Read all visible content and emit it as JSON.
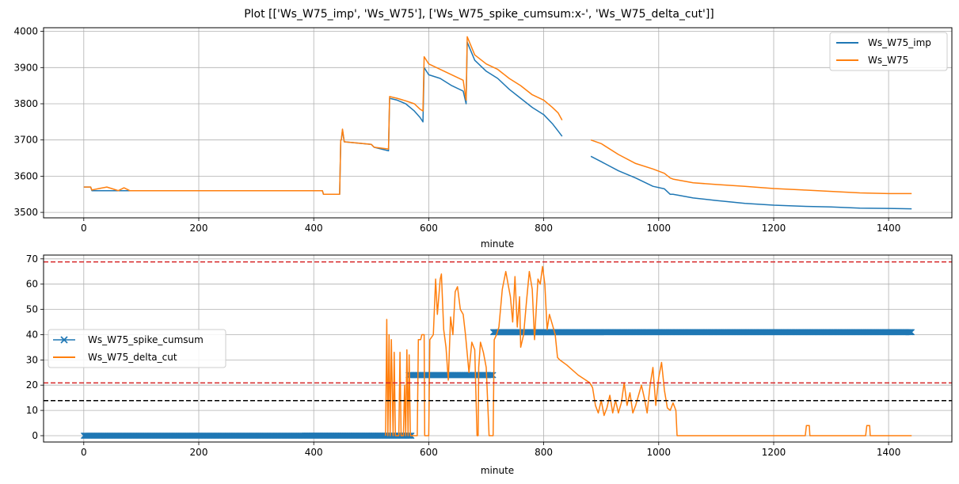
{
  "figure": {
    "title": "Plot [['Ws_W75_imp', 'Ws_W75'], ['Ws_W75_spike_cumsum:x-', 'Ws_W75_delta_cut']]"
  },
  "chart_data": [
    {
      "type": "line",
      "xlabel": "minute",
      "ylabel": "",
      "xlim": [
        -70,
        1510
      ],
      "ylim": [
        3485,
        4010
      ],
      "xticks": [
        0,
        200,
        400,
        600,
        800,
        1000,
        1200,
        1400
      ],
      "yticks": [
        3500,
        3600,
        3700,
        3800,
        3900,
        4000
      ],
      "grid": true,
      "legend_position": "top-right",
      "series": [
        {
          "name": "Ws_W75_imp",
          "color": "#1f77b4",
          "points": [
            [
              0,
              3570
            ],
            [
              12,
              3570
            ],
            [
              14,
              3560
            ],
            [
              50,
              3560
            ],
            [
              60,
              3560
            ],
            [
              80,
              3560
            ],
            [
              415,
              3560
            ],
            [
              417,
              3550
            ],
            [
              445,
              3550
            ],
            [
              447,
              3700
            ],
            [
              448,
              3700
            ],
            [
              450,
              3728
            ],
            [
              453,
              3695
            ],
            [
              500,
              3688
            ],
            [
              505,
              3680
            ],
            [
              530,
              3670
            ],
            [
              532,
              3815
            ],
            [
              545,
              3810
            ],
            [
              560,
              3800
            ],
            [
              575,
              3780
            ],
            [
              585,
              3762
            ],
            [
              590,
              3750
            ],
            [
              592,
              3900
            ],
            [
              600,
              3880
            ],
            [
              620,
              3870
            ],
            [
              640,
              3850
            ],
            [
              660,
              3835
            ],
            [
              665,
              3800
            ],
            [
              667,
              3970
            ],
            [
              680,
              3920
            ],
            [
              700,
              3890
            ],
            [
              720,
              3870
            ],
            [
              740,
              3840
            ],
            [
              760,
              3815
            ],
            [
              780,
              3790
            ],
            [
              800,
              3770
            ],
            [
              815,
              3745
            ],
            [
              825,
              3725
            ],
            [
              832,
              3710
            ],
            [
              882,
              3655
            ],
            [
              900,
              3640
            ],
            [
              930,
              3615
            ],
            [
              960,
              3595
            ],
            [
              990,
              3572
            ],
            [
              1010,
              3565
            ],
            [
              1020,
              3550
            ],
            [
              1025,
              3550
            ],
            [
              1060,
              3540
            ],
            [
              1100,
              3533
            ],
            [
              1150,
              3525
            ],
            [
              1200,
              3520
            ],
            [
              1250,
              3517
            ],
            [
              1300,
              3515
            ],
            [
              1350,
              3512
            ],
            [
              1400,
              3511
            ],
            [
              1440,
              3510
            ]
          ],
          "gaps_after_x": [
            832
          ]
        },
        {
          "name": "Ws_W75",
          "color": "#ff7f0e",
          "points": [
            [
              0,
              3570
            ],
            [
              12,
              3570
            ],
            [
              14,
              3562
            ],
            [
              40,
              3570
            ],
            [
              50,
              3565
            ],
            [
              60,
              3560
            ],
            [
              70,
              3568
            ],
            [
              80,
              3560
            ],
            [
              415,
              3560
            ],
            [
              417,
              3550
            ],
            [
              445,
              3550
            ],
            [
              447,
              3700
            ],
            [
              448,
              3700
            ],
            [
              450,
              3730
            ],
            [
              453,
              3695
            ],
            [
              500,
              3688
            ],
            [
              505,
              3680
            ],
            [
              530,
              3675
            ],
            [
              532,
              3820
            ],
            [
              545,
              3815
            ],
            [
              560,
              3808
            ],
            [
              575,
              3800
            ],
            [
              585,
              3785
            ],
            [
              590,
              3780
            ],
            [
              592,
              3930
            ],
            [
              600,
              3910
            ],
            [
              620,
              3895
            ],
            [
              640,
              3880
            ],
            [
              660,
              3865
            ],
            [
              665,
              3810
            ],
            [
              667,
              3985
            ],
            [
              680,
              3935
            ],
            [
              700,
              3910
            ],
            [
              720,
              3895
            ],
            [
              740,
              3870
            ],
            [
              760,
              3850
            ],
            [
              780,
              3825
            ],
            [
              800,
              3810
            ],
            [
              815,
              3790
            ],
            [
              825,
              3775
            ],
            [
              832,
              3755
            ],
            [
              882,
              3700
            ],
            [
              900,
              3690
            ],
            [
              930,
              3660
            ],
            [
              960,
              3635
            ],
            [
              990,
              3620
            ],
            [
              1010,
              3608
            ],
            [
              1020,
              3595
            ],
            [
              1025,
              3592
            ],
            [
              1060,
              3582
            ],
            [
              1100,
              3577
            ],
            [
              1150,
              3572
            ],
            [
              1200,
              3566
            ],
            [
              1250,
              3562
            ],
            [
              1300,
              3558
            ],
            [
              1350,
              3554
            ],
            [
              1400,
              3552
            ],
            [
              1440,
              3552
            ]
          ],
          "gaps_after_x": [
            832
          ]
        }
      ]
    },
    {
      "type": "line",
      "xlabel": "minute",
      "ylabel": "",
      "xlim": [
        -70,
        1510
      ],
      "ylim": [
        -2.5,
        71.5
      ],
      "xticks": [
        0,
        200,
        400,
        600,
        800,
        1000,
        1200,
        1400
      ],
      "yticks": [
        0,
        10,
        20,
        30,
        40,
        50,
        60,
        70
      ],
      "grid": true,
      "legend_position": "center-left",
      "hlines": [
        {
          "y": 68.8,
          "color": "#d62728",
          "style": "dashed"
        },
        {
          "y": 20.9,
          "color": "#d62728",
          "style": "dashed"
        },
        {
          "y": 13.9,
          "color": "#000000",
          "style": "dashed"
        }
      ],
      "series": [
        {
          "name": "Ws_W75_spike_cumsum",
          "color": "#1f77b4",
          "marker": "x",
          "segments": [
            {
              "x_start": 0,
              "x_end": 570,
              "y": 0
            },
            {
              "x_start": 565,
              "x_end": 712,
              "y": 24
            },
            {
              "x_start": 712,
              "x_end": 1440,
              "y": 41
            }
          ]
        },
        {
          "name": "Ws_W75_delta_cut",
          "color": "#ff7f0e",
          "points": [
            [
              525,
              0
            ],
            [
              527,
              46
            ],
            [
              529,
              0
            ],
            [
              531,
              40
            ],
            [
              533,
              0
            ],
            [
              535,
              38
            ],
            [
              538,
              0
            ],
            [
              540,
              33
            ],
            [
              542,
              0
            ],
            [
              548,
              0
            ],
            [
              550,
              33
            ],
            [
              552,
              0
            ],
            [
              556,
              0
            ],
            [
              558,
              20
            ],
            [
              560,
              0
            ],
            [
              562,
              34
            ],
            [
              564,
              0
            ],
            [
              566,
              32
            ],
            [
              568,
              0
            ],
            [
              570,
              0
            ],
            [
              580,
              0
            ],
            [
              582,
              38
            ],
            [
              586,
              38
            ],
            [
              588,
              40
            ],
            [
              592,
              40
            ],
            [
              593,
              0
            ],
            [
              600,
              0
            ],
            [
              602,
              38
            ],
            [
              608,
              40
            ],
            [
              612,
              62
            ],
            [
              615,
              48
            ],
            [
              620,
              62
            ],
            [
              622,
              64
            ],
            [
              626,
              42
            ],
            [
              630,
              35
            ],
            [
              634,
              22
            ],
            [
              638,
              47
            ],
            [
              642,
              40
            ],
            [
              646,
              57
            ],
            [
              650,
              59
            ],
            [
              655,
              50
            ],
            [
              660,
              48
            ],
            [
              664,
              40
            ],
            [
              670,
              25
            ],
            [
              675,
              37
            ],
            [
              680,
              34
            ],
            [
              684,
              0
            ],
            [
              686,
              0
            ],
            [
              687,
              27
            ],
            [
              690,
              37
            ],
            [
              695,
              33
            ],
            [
              700,
              27
            ],
            [
              705,
              0
            ],
            [
              712,
              0
            ],
            [
              714,
              38
            ],
            [
              718,
              40
            ],
            [
              722,
              43
            ],
            [
              728,
              58
            ],
            [
              734,
              65
            ],
            [
              738,
              60
            ],
            [
              742,
              55
            ],
            [
              746,
              45
            ],
            [
              750,
              63
            ],
            [
              754,
              43
            ],
            [
              758,
              55
            ],
            [
              760,
              35
            ],
            [
              765,
              40
            ],
            [
              770,
              53
            ],
            [
              775,
              65
            ],
            [
              780,
              58
            ],
            [
              784,
              38
            ],
            [
              790,
              62
            ],
            [
              794,
              60
            ],
            [
              798,
              67
            ],
            [
              802,
              60
            ],
            [
              806,
              42
            ],
            [
              810,
              48
            ],
            [
              815,
              44
            ],
            [
              820,
              40
            ],
            [
              824,
              31
            ],
            [
              828,
              30
            ],
            [
              840,
              28
            ],
            [
              860,
              24
            ],
            [
              880,
              21
            ],
            [
              885,
              19
            ],
            [
              890,
              12
            ],
            [
              895,
              9
            ],
            [
              900,
              14
            ],
            [
              905,
              8
            ],
            [
              910,
              11
            ],
            [
              915,
              16
            ],
            [
              920,
              9
            ],
            [
              925,
              14
            ],
            [
              930,
              9
            ],
            [
              935,
              13
            ],
            [
              940,
              21
            ],
            [
              945,
              12
            ],
            [
              950,
              17
            ],
            [
              955,
              9
            ],
            [
              960,
              12
            ],
            [
              970,
              20
            ],
            [
              975,
              15
            ],
            [
              980,
              9
            ],
            [
              985,
              20
            ],
            [
              990,
              27
            ],
            [
              995,
              12
            ],
            [
              1000,
              23
            ],
            [
              1005,
              29
            ],
            [
              1010,
              18
            ],
            [
              1015,
              11
            ],
            [
              1020,
              10
            ],
            [
              1025,
              13
            ],
            [
              1030,
              10
            ],
            [
              1032,
              0
            ],
            [
              1255,
              0
            ],
            [
              1257,
              4
            ],
            [
              1262,
              4
            ],
            [
              1263,
              0
            ],
            [
              1360,
              0
            ],
            [
              1362,
              4
            ],
            [
              1367,
              4
            ],
            [
              1368,
              0
            ],
            [
              1440,
              0
            ]
          ]
        }
      ]
    }
  ]
}
